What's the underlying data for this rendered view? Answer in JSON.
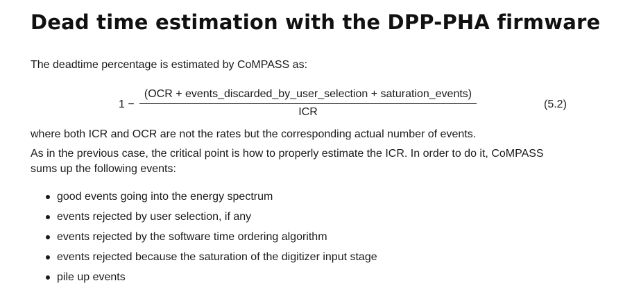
{
  "heading": "Dead time estimation with the DPP-PHA firmware",
  "intro": "The deadtime percentage is estimated by CoMPASS as:",
  "equation": {
    "lhs": "1 −",
    "numerator": "(OCR + events_discarded_by_user_selection + saturation_events)",
    "denominator": "ICR",
    "number": "(5.2)"
  },
  "where_text": "where both ICR and OCR are not the rates but the corresponding actual number of events.",
  "previous_case": {
    "line1": "As in the previous case, the critical point is how to properly estimate the ICR. In order to do it, CoMPASS",
    "line2": "sums up the following events:"
  },
  "bullets": [
    "good events going into the energy spectrum",
    "events rejected by user selection, if any",
    "events rejected by the software time ordering algorithm",
    "events rejected because the saturation of the digitizer input stage",
    "pile up events"
  ]
}
